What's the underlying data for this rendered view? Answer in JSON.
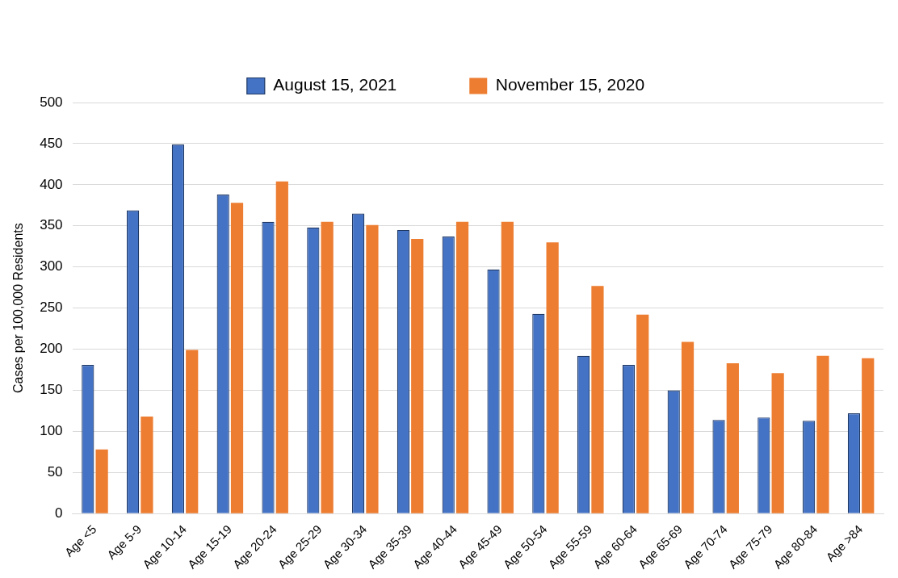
{
  "chart_data": {
    "type": "bar",
    "y_label": "Cases per 100,000 Residents",
    "categories": [
      "Age <5",
      "Age 5-9",
      "Age 10-14",
      "Age 15-19",
      "Age 20-24",
      "Age 25-29",
      "Age 30-34",
      "Age 35-39",
      "Age 40-44",
      "Age 45-49",
      "Age 50-54",
      "Age 55-59",
      "Age 60-64",
      "Age 65-69",
      "Age 70-74",
      "Age 75-79",
      "Age 80-84",
      "Age >84"
    ],
    "series": [
      {
        "name": "August 15, 2021",
        "color": "#4472c4",
        "values": [
          181,
          369,
          449,
          388,
          355,
          348,
          365,
          345,
          337,
          297,
          243,
          192,
          181,
          150,
          114,
          117,
          113,
          122
        ]
      },
      {
        "name": "November 15, 2020",
        "color": "#ed7d31",
        "values": [
          78,
          118,
          199,
          378,
          404,
          355,
          351,
          334,
          355,
          355,
          330,
          277,
          242,
          209,
          183,
          171,
          192,
          189
        ]
      }
    ],
    "ylim": [
      0,
      500
    ],
    "yticks": [
      0,
      50,
      100,
      150,
      200,
      250,
      300,
      350,
      400,
      450,
      500
    ],
    "grid": true,
    "legend": "top"
  }
}
